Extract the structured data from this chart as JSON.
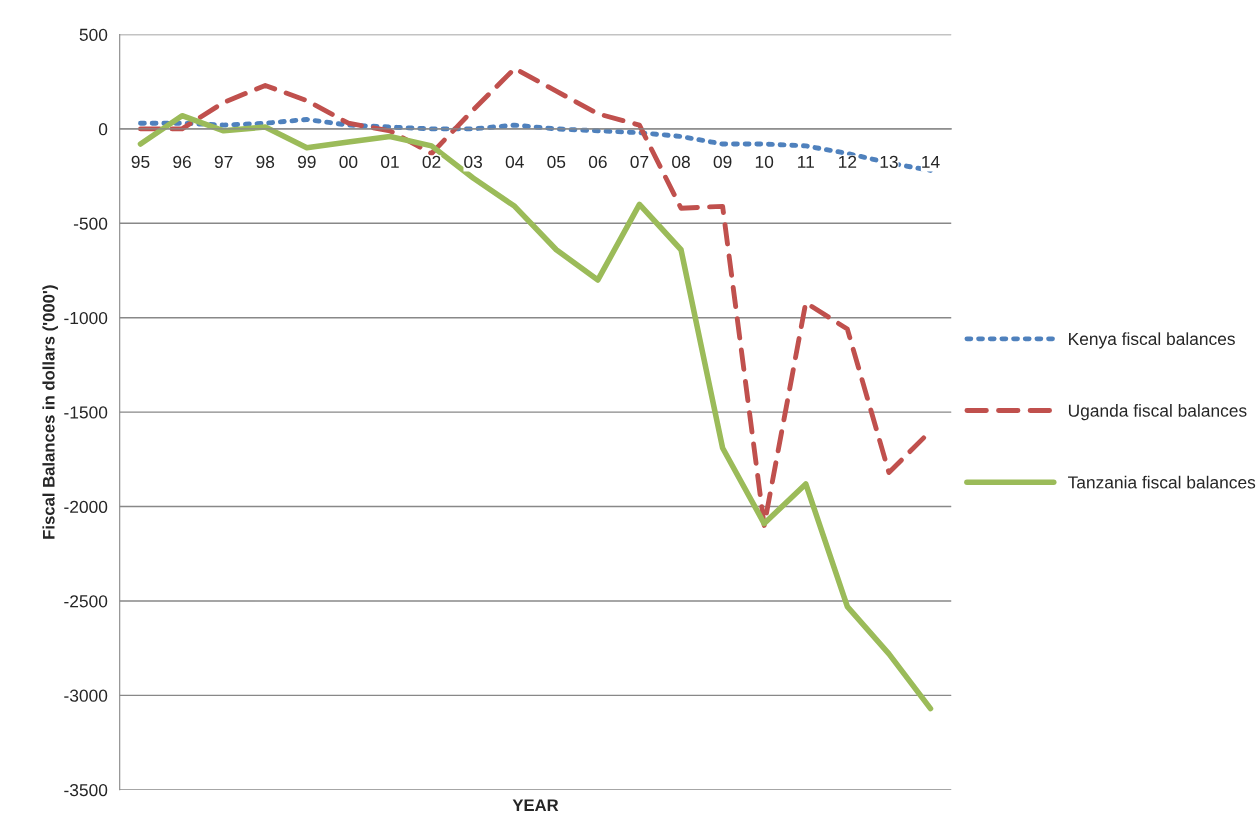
{
  "chart_data": {
    "type": "line",
    "xlabel": "YEAR",
    "ylabel": "Fiscal Balances in dollars ('000')",
    "categories": [
      "95",
      "96",
      "97",
      "98",
      "99",
      "00",
      "01",
      "02",
      "03",
      "04",
      "05",
      "06",
      "07",
      "08",
      "09",
      "10",
      "11",
      "12",
      "13",
      "14"
    ],
    "series": [
      {
        "name": "Kenya fiscal balances",
        "color": "#4f81bd",
        "line_style": "dotted",
        "values": [
          30,
          30,
          20,
          30,
          50,
          20,
          10,
          0,
          0,
          20,
          0,
          -10,
          -20,
          -40,
          -80,
          -80,
          -90,
          -130,
          -180,
          -220
        ]
      },
      {
        "name": "Uganda fiscal balances",
        "color": "#c0504d",
        "line_style": "dashed",
        "values": [
          0,
          0,
          140,
          230,
          150,
          30,
          -10,
          -130,
          100,
          320,
          200,
          80,
          20,
          -420,
          -410,
          -2100,
          -920,
          -1060,
          -1820,
          -1600
        ]
      },
      {
        "name": "Tanzania fiscal balances",
        "color": "#9bbb59",
        "line_style": "solid",
        "values": [
          -80,
          70,
          -10,
          10,
          -100,
          -70,
          -40,
          -90,
          -260,
          -410,
          -640,
          -800,
          -400,
          -640,
          -1690,
          -2090,
          -1880,
          -2530,
          -2780,
          -3070
        ]
      }
    ],
    "ylim": [
      -3500,
      500
    ],
    "yticks": [
      -3500,
      -3000,
      -2500,
      -2000,
      -1500,
      -1000,
      -500,
      0,
      500
    ],
    "grid": "y",
    "legend": "right",
    "marker": "none"
  }
}
